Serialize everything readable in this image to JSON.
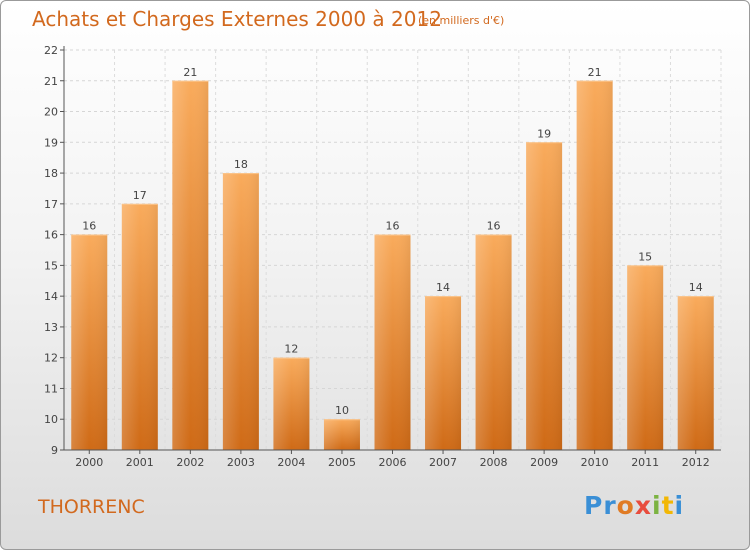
{
  "header": {
    "title": "Achats et Charges Externes 2000 à 2012",
    "unit": "(en milliers d'€)"
  },
  "footer": {
    "commune": "THORRENC",
    "logo_letters": [
      "Pr",
      "o",
      "x",
      "i",
      "t",
      "i"
    ]
  },
  "colors": {
    "accent": "#d2691e",
    "bar_light": "#f8a757",
    "bar_dark": "#d06d18",
    "axis": "#555555"
  },
  "chart_data": {
    "type": "bar",
    "categories": [
      "2000",
      "2001",
      "2002",
      "2003",
      "2004",
      "2005",
      "2006",
      "2007",
      "2008",
      "2009",
      "2010",
      "2011",
      "2012"
    ],
    "values": [
      16,
      17,
      21,
      18,
      12,
      10,
      16,
      14,
      16,
      19,
      21,
      15,
      14
    ],
    "data_labels": [
      "16",
      "17",
      "21",
      "18",
      "12",
      "10",
      "16",
      "14",
      "16",
      "19",
      "21",
      "15",
      "14"
    ],
    "title": "Achats et Charges Externes 2000 à 2012",
    "ylim": [
      9,
      22
    ],
    "yticks": [
      9,
      10,
      11,
      12,
      13,
      14,
      15,
      16,
      17,
      18,
      19,
      20,
      21,
      22
    ],
    "grid": true
  }
}
